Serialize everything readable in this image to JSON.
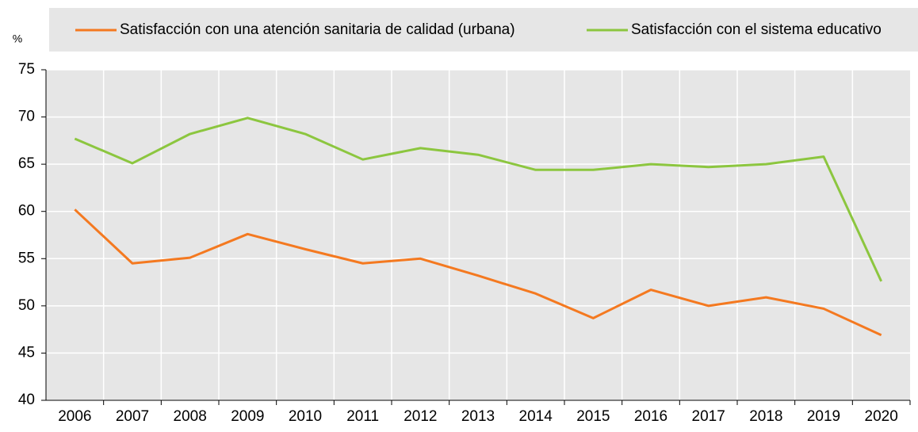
{
  "chart_data": {
    "type": "line",
    "y_label": "%",
    "categories": [
      "2006",
      "2007",
      "2008",
      "2009",
      "2010",
      "2011",
      "2012",
      "2013",
      "2014",
      "2015",
      "2016",
      "2017",
      "2018",
      "2019",
      "2020"
    ],
    "series": [
      {
        "name": "Satisfacción con una atención sanitaria de calidad (urbana)",
        "color": "#f47920",
        "values": [
          60.2,
          54.5,
          55.1,
          57.6,
          56.0,
          54.5,
          55.0,
          53.2,
          51.3,
          48.7,
          51.7,
          50.0,
          50.9,
          49.7,
          46.9
        ]
      },
      {
        "name": "Satisfacción con el sistema educativo",
        "color": "#8cc63f",
        "values": [
          67.7,
          65.1,
          68.2,
          69.9,
          68.2,
          65.5,
          66.7,
          66.0,
          64.4,
          64.4,
          65.0,
          64.7,
          65.0,
          65.8,
          52.6
        ]
      }
    ],
    "ylim": [
      40,
      75
    ],
    "yticks": [
      40,
      45,
      50,
      55,
      60,
      65,
      70,
      75
    ],
    "grid": true,
    "legend": "top"
  }
}
